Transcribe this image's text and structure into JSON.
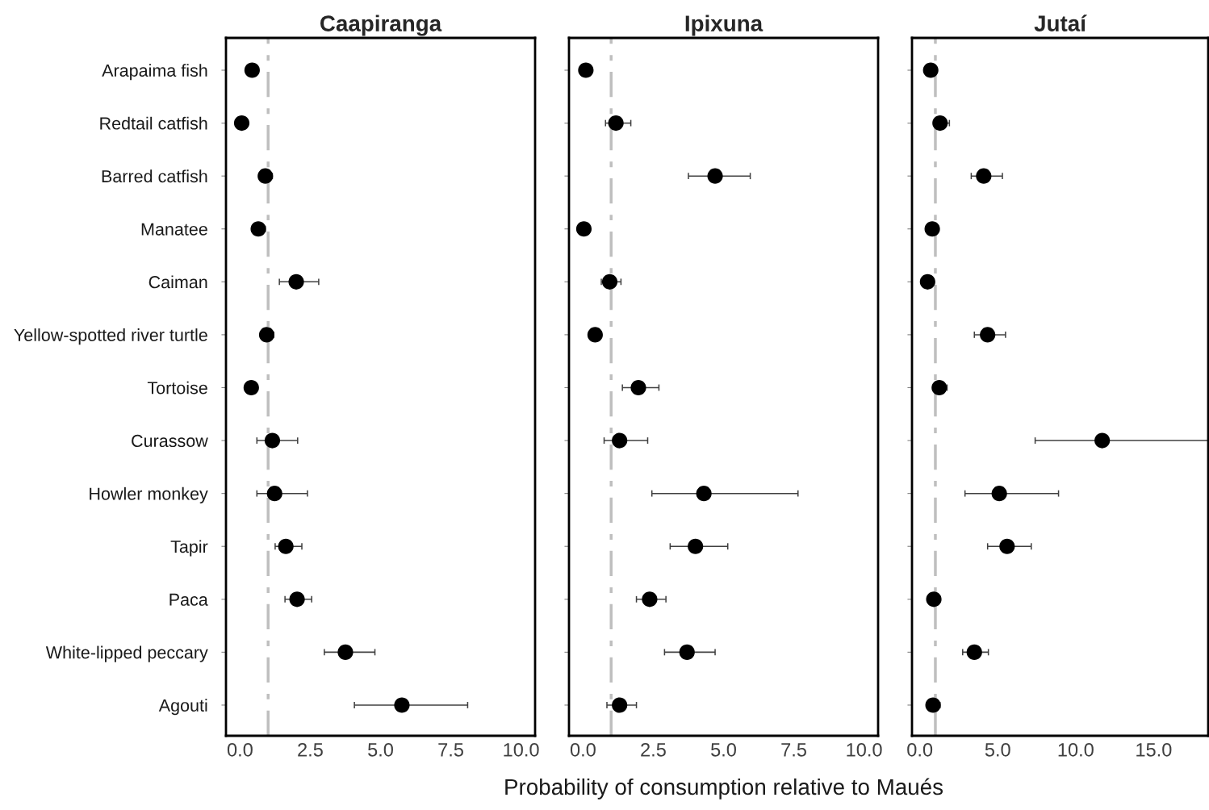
{
  "chart_data": [
    {
      "type": "scatter",
      "title": "Caapiranga",
      "orientation": "horizontal",
      "marker": "circle",
      "grid": false,
      "legend": false,
      "categories": [
        "Arapaima fish",
        "Redtail catfish",
        "Barred catfish",
        "Manatee",
        "Caiman",
        "Yellow-spotted river turtle",
        "Tortoise",
        "Curassow",
        "Howler monkey",
        "Tapir",
        "Paca",
        "White-lipped peccary",
        "Agouti"
      ],
      "series": [
        {
          "color": "#000000",
          "values": [
            0.43,
            0.06,
            0.9,
            0.65,
            2.0,
            0.95,
            0.4,
            1.15,
            1.23,
            1.63,
            2.03,
            3.75,
            5.76
          ],
          "errors": [
            null,
            null,
            [
              0.9,
              1.15
            ],
            [
              0.65,
              0.9
            ],
            [
              1.4,
              2.8
            ],
            [
              0.95,
              1.2
            ],
            [
              0.4,
              0.62
            ],
            [
              0.6,
              2.05
            ],
            [
              0.6,
              2.4
            ],
            [
              1.25,
              2.2
            ],
            [
              1.6,
              2.55
            ],
            [
              3.0,
              4.8
            ],
            [
              4.07,
              8.1
            ]
          ]
        }
      ],
      "xlim": [
        -0.5,
        10.5
      ],
      "xticks": [
        {
          "value": 0,
          "label": "0.0"
        },
        {
          "value": 2.5,
          "label": "2.5"
        },
        {
          "value": 5,
          "label": "5.0"
        },
        {
          "value": 7.5,
          "label": "7.5"
        },
        {
          "value": 10,
          "label": "10.0"
        }
      ],
      "ref_lines": [
        {
          "axis": "x",
          "value": 1.0,
          "color": "#bfbfbf"
        }
      ]
    },
    {
      "type": "scatter",
      "title": "Ipixuna",
      "xlabel": "Probability of consumption relative to Maués",
      "orientation": "horizontal",
      "marker": "circle",
      "grid": false,
      "legend": false,
      "tick_labels": "x",
      "series": [
        {
          "color": "#000000",
          "values": [
            0.1,
            1.17,
            4.7,
            0.03,
            0.95,
            0.43,
            1.97,
            1.3,
            4.3,
            4.0,
            2.37,
            3.7,
            1.3
          ],
          "errors": [
            null,
            [
              0.8,
              1.7
            ],
            [
              3.75,
              5.95
            ],
            null,
            [
              0.65,
              1.35
            ],
            null,
            [
              1.4,
              2.7
            ],
            [
              0.75,
              2.3
            ],
            [
              2.45,
              7.65
            ],
            [
              3.1,
              5.15
            ],
            [
              1.9,
              2.95
            ],
            [
              2.9,
              4.7
            ],
            [
              0.85,
              1.9
            ]
          ]
        }
      ],
      "xlim": [
        -0.5,
        10.5
      ],
      "xticks": [
        {
          "value": 0,
          "label": "0.0"
        },
        {
          "value": 2.5,
          "label": "2.5"
        },
        {
          "value": 5,
          "label": "5.0"
        },
        {
          "value": 7.5,
          "label": "7.5"
        },
        {
          "value": 10,
          "label": "10.0"
        }
      ],
      "ref_lines": [
        {
          "axis": "x",
          "value": 1.0,
          "color": "#bfbfbf"
        }
      ]
    },
    {
      "type": "scatter",
      "title": "Jutaí",
      "orientation": "horizontal",
      "marker": "circle",
      "grid": false,
      "legend": false,
      "tick_labels": "x",
      "series": [
        {
          "color": "#000000",
          "values": [
            0.7,
            1.3,
            4.1,
            0.8,
            0.5,
            4.35,
            1.25,
            11.7,
            5.1,
            5.6,
            0.9,
            3.5,
            0.85
          ],
          "errors": [
            null,
            [
              1.0,
              1.9
            ],
            [
              3.3,
              5.3
            ],
            [
              0.8,
              1.2
            ],
            null,
            [
              3.5,
              5.5
            ],
            [
              1.25,
              1.75
            ],
            [
              7.4,
              18.5
            ],
            [
              2.9,
              8.9
            ],
            [
              4.35,
              7.15
            ],
            [
              0.9,
              1.3
            ],
            [
              2.75,
              4.4
            ],
            [
              0.85,
              1.3
            ]
          ]
        }
      ],
      "xlim": [
        -0.5,
        18.5
      ],
      "xticks": [
        {
          "value": 0,
          "label": "0.0"
        },
        {
          "value": 5,
          "label": "5.0"
        },
        {
          "value": 10,
          "label": "10.0"
        },
        {
          "value": 15,
          "label": "15.0"
        }
      ],
      "ref_lines": [
        {
          "axis": "x",
          "value": 1.0,
          "color": "#bfbfbf"
        }
      ]
    }
  ]
}
